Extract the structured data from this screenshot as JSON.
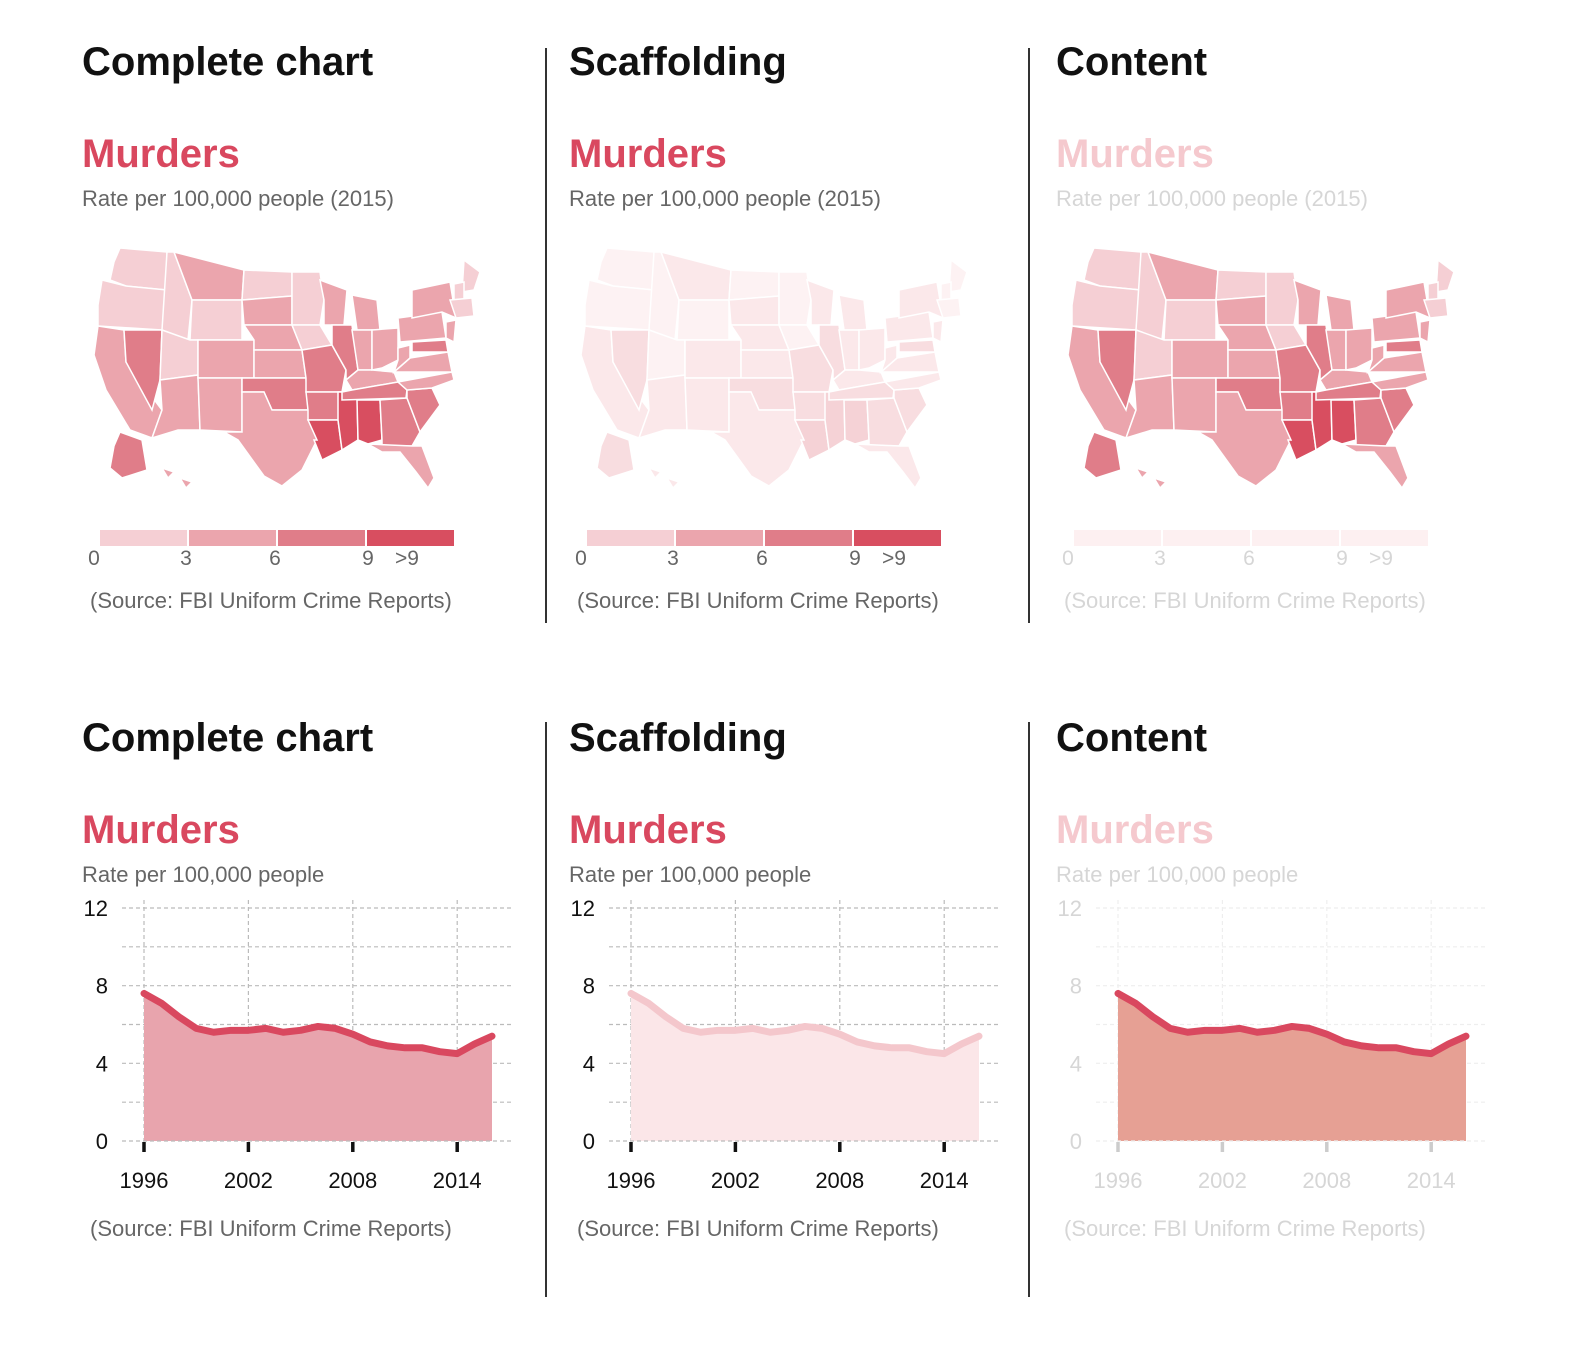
{
  "panels": [
    {
      "label": "Complete chart"
    },
    {
      "label": "Scaffolding"
    },
    {
      "label": "Content"
    }
  ],
  "colors": {
    "accent": "#d9485f",
    "accent_faded": "#f5c9ce",
    "text_dark": "#111111",
    "text_gray": "#666666",
    "text_faded": "#d6d6d6",
    "divider": "#333333",
    "area_complete": "#e8a4ad",
    "area_scaffolding": "#fbe6e8",
    "area_content": "#e6a094",
    "line_scaffolding": "#f4c7cc"
  },
  "map_chart": {
    "title": "Murders",
    "subtitle": "Rate per 100,000 people (2015)",
    "source": "(Source: FBI Uniform Crime Reports)",
    "legend": {
      "labels": [
        "0",
        "3",
        "6",
        "9",
        ">9"
      ],
      "colors": [
        "#f5cfd4",
        "#eba5ad",
        "#e07d89",
        "#d84e60"
      ]
    }
  },
  "chart_data": [
    {
      "type": "map",
      "title": "Murders",
      "subtitle": "Rate per 100,000 people (2015)",
      "source": "(Source: FBI Uniform Crime Reports)",
      "bins": [
        [
          0,
          3
        ],
        [
          3,
          6
        ],
        [
          6,
          9
        ],
        [
          9,
          null
        ]
      ],
      "bin_labels": [
        "0",
        "3",
        "6",
        "9",
        ">9"
      ],
      "region": "United States (by state)"
    },
    {
      "type": "area",
      "title": "Murders",
      "subtitle": "Rate per 100,000 people",
      "source": "(Source: FBI Uniform Crime Reports)",
      "x": [
        1996,
        1997,
        1998,
        1999,
        2000,
        2001,
        2002,
        2003,
        2004,
        2005,
        2006,
        2007,
        2008,
        2009,
        2010,
        2011,
        2012,
        2013,
        2014,
        2015,
        2016
      ],
      "y": [
        7.6,
        7.1,
        6.4,
        5.8,
        5.6,
        5.7,
        5.7,
        5.8,
        5.6,
        5.7,
        5.9,
        5.8,
        5.5,
        5.1,
        4.9,
        4.8,
        4.8,
        4.6,
        4.5,
        5.0,
        5.4
      ],
      "xticks": [
        1996,
        2002,
        2008,
        2014
      ],
      "yticks": [
        0,
        4,
        8,
        12
      ],
      "xlim": [
        1996,
        2016
      ],
      "ylim": [
        0,
        12
      ],
      "grid": true
    }
  ]
}
